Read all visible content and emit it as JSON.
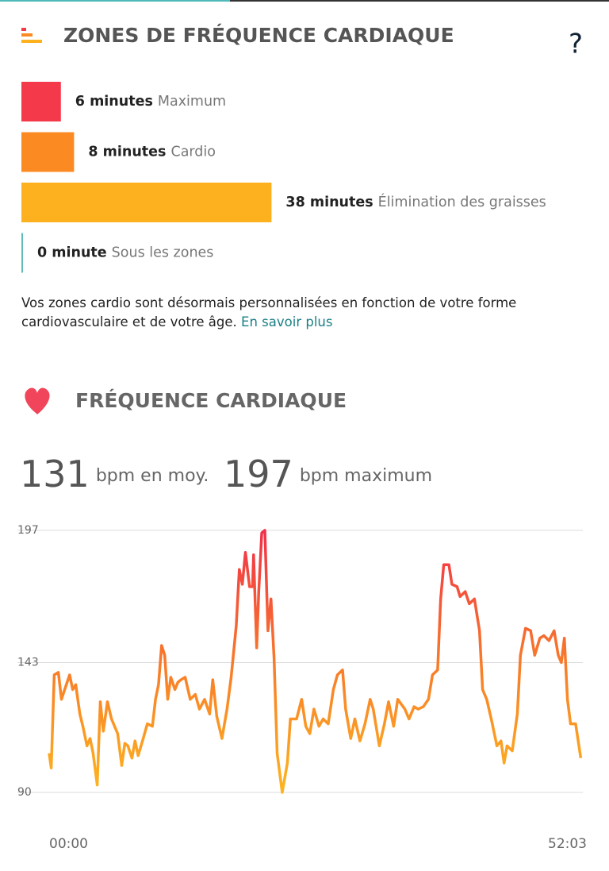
{
  "header": {
    "title": "ZONES DE FRÉQUENCE CARDIAQUE",
    "help": "?"
  },
  "zones": [
    {
      "value": 6,
      "label": "6 minutes",
      "name": "Maximum",
      "color": "#f43a4a"
    },
    {
      "value": 8,
      "label": "8 minutes",
      "name": "Cardio",
      "color": "#fb8a22"
    },
    {
      "value": 38,
      "label": "38 minutes",
      "name": "Élimination des graisses",
      "color": "#fdb11e"
    },
    {
      "value": 0,
      "label": "0 minute",
      "name": "Sous les zones",
      "color": "#5fbcbc"
    }
  ],
  "note": {
    "text": "Vos zones cardio sont désormais personnalisées en fonction de votre forme cardiovasculaire et de votre âge.",
    "link": "En savoir plus"
  },
  "heart": {
    "title": "FRÉQUENCE CARDIAQUE",
    "stats": [
      {
        "value": 131,
        "unit": "bpm en moy."
      },
      {
        "value": 197,
        "unit": "bpm maximum"
      }
    ]
  },
  "chart_data": {
    "type": "line",
    "gradient": [
      "#f1304a",
      "#f87a2a",
      "#fdb51f"
    ],
    "grid": true,
    "ylim": [
      90,
      197
    ],
    "yticks": [
      90,
      143,
      197
    ],
    "xlim": [
      0,
      52.05
    ],
    "xticks": [
      {
        "value": 0,
        "label": "00:00"
      },
      {
        "value": 52.05,
        "label": "52:03"
      }
    ],
    "x": [
      0,
      0.2,
      0.5,
      0.9,
      1.2,
      1.6,
      2.0,
      2.3,
      2.6,
      3.0,
      3.3,
      3.7,
      4.0,
      4.3,
      4.7,
      5.0,
      5.3,
      5.7,
      6.1,
      6.7,
      7.1,
      7.4,
      7.7,
      8.1,
      8.4,
      8.7,
      9.2,
      9.6,
      10.1,
      10.4,
      10.7,
      11.0,
      11.3,
      11.6,
      11.9,
      12.3,
      12.6,
      12.9,
      13.3,
      13.8,
      14.3,
      14.7,
      15.2,
      15.7,
      16.0,
      16.4,
      16.9,
      17.4,
      17.8,
      18.3,
      18.6,
      18.9,
      19.2,
      19.6,
      19.9,
      20.0,
      20.3,
      20.5,
      20.8,
      21.1,
      21.4,
      21.7,
      22.0,
      22.3,
      22.8,
      23.3,
      23.6,
      24.2,
      24.7,
      25.1,
      25.5,
      25.9,
      26.4,
      26.8,
      27.3,
      27.8,
      28.2,
      28.7,
      29.0,
      29.5,
      29.9,
      30.4,
      30.9,
      31.4,
      31.7,
      32.3,
      32.8,
      33.2,
      33.7,
      34.1,
      34.8,
      35.2,
      35.7,
      36.1,
      36.6,
      37.1,
      37.5,
      38.0,
      38.3,
      38.6,
      39.1,
      39.4,
      39.9,
      40.2,
      40.7,
      41.1,
      41.6,
      42.1,
      42.4,
      42.8,
      43.3,
      43.8,
      44.2,
      44.5,
      44.8,
      45.3,
      45.8,
      46.1,
      46.6,
      47.1,
      47.5,
      48.0,
      48.4,
      48.9,
      49.4,
      49.8,
      50.1,
      50.4,
      50.7,
      51.0,
      51.5,
      52.0
    ],
    "series": [
      {
        "values": [
          106,
          100,
          138,
          139,
          128,
          133,
          138,
          132,
          134,
          122,
          117,
          109,
          112,
          106,
          93,
          127,
          115,
          127,
          120,
          114,
          101,
          110,
          109,
          104,
          111,
          105,
          112,
          118,
          117,
          128,
          134,
          150,
          146,
          128,
          137,
          132,
          135,
          136,
          137,
          128,
          130,
          124,
          128,
          122,
          136,
          121,
          112,
          124,
          137,
          158,
          181,
          175,
          188,
          174,
          174,
          187,
          149,
          172,
          196,
          197,
          156,
          169,
          145,
          106,
          90,
          102,
          120,
          120,
          128,
          117,
          114,
          124,
          117,
          120,
          118,
          132,
          138,
          140,
          124,
          112,
          120,
          111,
          118,
          128,
          124,
          109,
          118,
          127,
          117,
          128,
          124,
          120,
          125,
          124,
          125,
          128,
          138,
          140,
          169,
          183,
          183,
          175,
          174,
          170,
          172,
          167,
          169,
          156,
          132,
          128,
          119,
          109,
          111,
          102,
          109,
          107,
          122,
          146,
          157,
          156,
          146,
          153,
          154,
          152,
          156,
          146,
          143,
          153,
          128,
          118,
          118,
          104
        ]
      }
    ]
  }
}
